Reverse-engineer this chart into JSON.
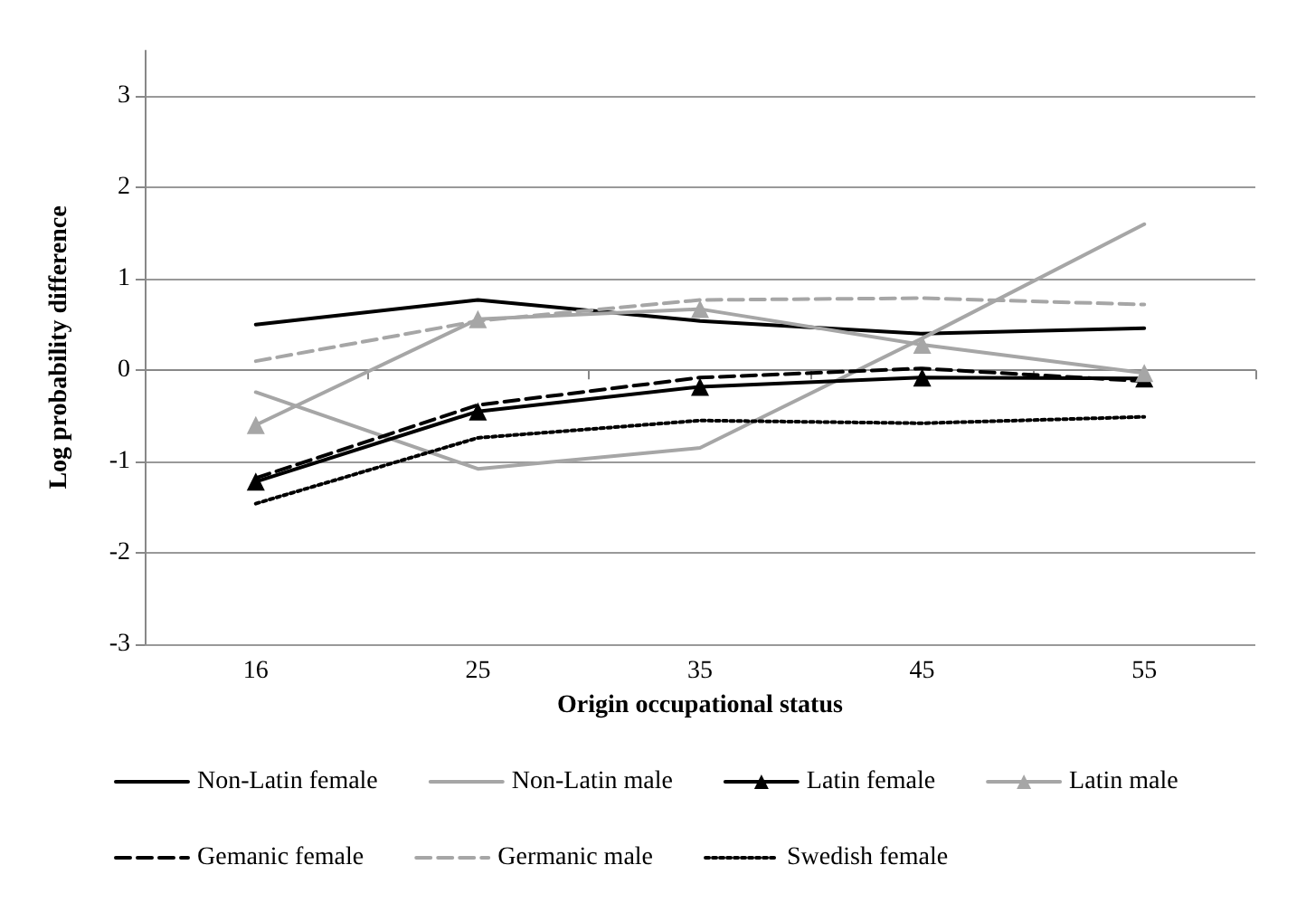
{
  "chart_data": {
    "type": "line",
    "xlabel": "Origin occupational status",
    "ylabel": "Log probability difference",
    "categories": [
      "16",
      "25",
      "35",
      "45",
      "55"
    ],
    "ylim": [
      -3,
      3.5
    ],
    "yticks": [
      -3,
      -2,
      -1,
      0,
      1,
      2,
      3
    ],
    "grid": "y",
    "legend": "bottom",
    "marker": "none",
    "series": [
      {
        "name": "Non-Latin female",
        "color": "#000000",
        "line_style": "solid",
        "values": [
          0.5,
          0.77,
          0.54,
          0.4,
          0.46
        ]
      },
      {
        "name": "Non-Latin male",
        "color": "#a6a6a6",
        "line_style": "solid",
        "values": [
          -0.24,
          -1.08,
          -0.85,
          0.35,
          1.6
        ]
      },
      {
        "name": "Latin female",
        "color": "#000000",
        "line_style": "solid",
        "marker": "triangle",
        "values": [
          -1.22,
          -0.45,
          -0.18,
          -0.08,
          -0.09
        ]
      },
      {
        "name": "Latin male",
        "color": "#a6a6a6",
        "line_style": "solid",
        "marker": "triangle",
        "values": [
          -0.6,
          0.56,
          0.67,
          0.28,
          -0.03
        ]
      },
      {
        "name": "Gemanic female",
        "color": "#000000",
        "line_style": "dashed",
        "values": [
          -1.18,
          -0.38,
          -0.08,
          0.02,
          -0.12
        ]
      },
      {
        "name": "Germanic male",
        "color": "#a6a6a6",
        "line_style": "dashed",
        "values": [
          0.1,
          0.54,
          0.77,
          0.79,
          0.72
        ]
      },
      {
        "name": "Swedish female",
        "color": "#000000",
        "line_style": "dotted",
        "values": [
          -1.46,
          -0.74,
          -0.55,
          -0.58,
          -0.51
        ]
      }
    ]
  }
}
